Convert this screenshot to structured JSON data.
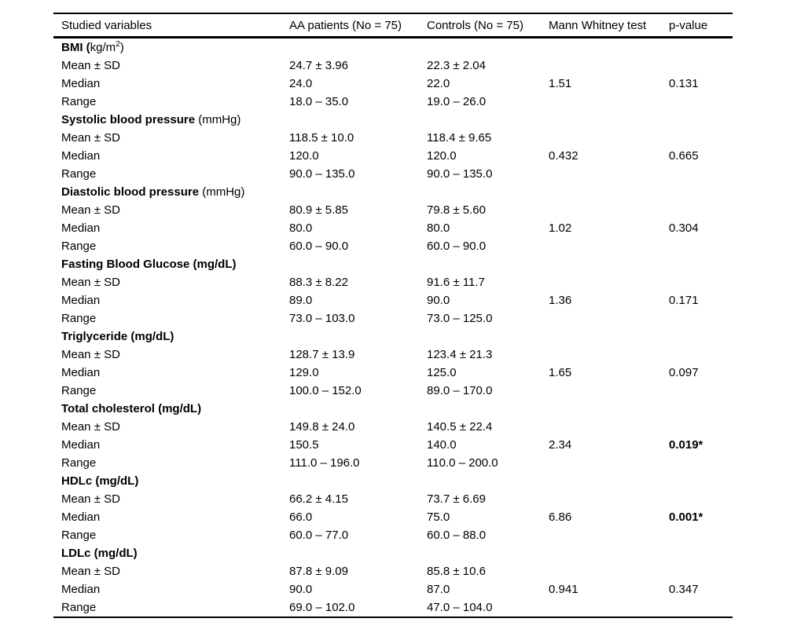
{
  "table": {
    "headers": [
      "Studied variables",
      "AA patients (No = 75)",
      "Controls (No = 75)",
      "Mann Whitney test",
      "p-value"
    ],
    "groups": [
      {
        "label_bold": "BMI (",
        "label_regular": "kg/m",
        "label_sup": "2",
        "label_after": ")",
        "rows": [
          {
            "label": "Mean ± SD",
            "aa": "24.7 ± 3.96",
            "control": "22.3 ± 2.04",
            "mw": "",
            "p": "",
            "p_bold": false
          },
          {
            "label": "Median",
            "aa": "24.0",
            "control": "22.0",
            "mw": "1.51",
            "p": "0.131",
            "p_bold": false
          },
          {
            "label": "Range",
            "aa": "18.0 – 35.0",
            "control": "19.0 – 26.0",
            "mw": "",
            "p": "",
            "p_bold": false
          }
        ]
      },
      {
        "label_bold": "Systolic blood pressure",
        "label_regular": " (mmHg)",
        "label_sup": "",
        "label_after": "",
        "rows": [
          {
            "label": "Mean ± SD",
            "aa": "118.5 ± 10.0",
            "control": "118.4 ± 9.65",
            "mw": "",
            "p": "",
            "p_bold": false
          },
          {
            "label": "Median",
            "aa": "120.0",
            "control": "120.0",
            "mw": "0.432",
            "p": "0.665",
            "p_bold": false
          },
          {
            "label": "Range",
            "aa": "90.0 – 135.0",
            "control": "90.0 – 135.0",
            "mw": "",
            "p": "",
            "p_bold": false
          }
        ]
      },
      {
        "label_bold": "Diastolic blood pressure",
        "label_regular": " (mmHg)",
        "label_sup": "",
        "label_after": "",
        "rows": [
          {
            "label": "Mean ± SD",
            "aa": "80.9 ± 5.85",
            "control": "79.8 ± 5.60",
            "mw": "",
            "p": "",
            "p_bold": false
          },
          {
            "label": "Median",
            "aa": "80.0",
            "control": "80.0",
            "mw": "1.02",
            "p": "0.304",
            "p_bold": false
          },
          {
            "label": "Range",
            "aa": "60.0 – 90.0",
            "control": "60.0 – 90.0",
            "mw": "",
            "p": "",
            "p_bold": false
          }
        ]
      },
      {
        "label_bold": "Fasting Blood Glucose (mg/dL)",
        "label_regular": "",
        "label_sup": "",
        "label_after": "",
        "rows": [
          {
            "label": "Mean ± SD",
            "aa": "88.3 ± 8.22",
            "control": "91.6 ± 11.7",
            "mw": "",
            "p": "",
            "p_bold": false
          },
          {
            "label": "Median",
            "aa": "89.0",
            "control": "90.0",
            "mw": "1.36",
            "p": "0.171",
            "p_bold": false
          },
          {
            "label": "Range",
            "aa": "73.0 – 103.0",
            "control": "73.0 – 125.0",
            "mw": "",
            "p": "",
            "p_bold": false
          }
        ]
      },
      {
        "label_bold": "Triglyceride (mg/dL)",
        "label_regular": "",
        "label_sup": "",
        "label_after": "",
        "rows": [
          {
            "label": "Mean ± SD",
            "aa": "128.7 ± 13.9",
            "control": "123.4 ± 21.3",
            "mw": "",
            "p": "",
            "p_bold": false
          },
          {
            "label": "Median",
            "aa": "129.0",
            "control": "125.0",
            "mw": "1.65",
            "p": "0.097",
            "p_bold": false
          },
          {
            "label": "Range",
            "aa": "100.0 – 152.0",
            "control": "89.0 – 170.0",
            "mw": "",
            "p": "",
            "p_bold": false
          }
        ]
      },
      {
        "label_bold": "Total cholesterol (mg/dL)",
        "label_regular": "",
        "label_sup": "",
        "label_after": "",
        "rows": [
          {
            "label": "Mean ± SD",
            "aa": "149.8 ± 24.0",
            "control": "140.5 ± 22.4",
            "mw": "",
            "p": "",
            "p_bold": false
          },
          {
            "label": "Median",
            "aa": "150.5",
            "control": "140.0",
            "mw": "2.34",
            "p": "0.019*",
            "p_bold": true
          },
          {
            "label": "Range",
            "aa": "111.0 – 196.0",
            "control": "110.0 – 200.0",
            "mw": "",
            "p": "",
            "p_bold": false
          }
        ]
      },
      {
        "label_bold": "HDLc (mg/dL)",
        "label_regular": "",
        "label_sup": "",
        "label_after": "",
        "rows": [
          {
            "label": "Mean ± SD",
            "aa": "66.2 ± 4.15",
            "control": "73.7 ± 6.69",
            "mw": "",
            "p": "",
            "p_bold": false
          },
          {
            "label": "Median",
            "aa": "66.0",
            "control": "75.0",
            "mw": "6.86",
            "p": "0.001*",
            "p_bold": true
          },
          {
            "label": "Range",
            "aa": "60.0 – 77.0",
            "control": "60.0 – 88.0",
            "mw": "",
            "p": "",
            "p_bold": false
          }
        ]
      },
      {
        "label_bold": "LDLc (mg/dL)",
        "label_regular": "",
        "label_sup": "",
        "label_after": "",
        "rows": [
          {
            "label": "Mean ± SD",
            "aa": "87.8 ± 9.09",
            "control": "85.8 ± 10.6",
            "mw": "",
            "p": "",
            "p_bold": false
          },
          {
            "label": "Median",
            "aa": "90.0",
            "control": "87.0",
            "mw": "0.941",
            "p": "0.347",
            "p_bold": false
          },
          {
            "label": "Range",
            "aa": "69.0 – 102.0",
            "control": "47.0 – 104.0",
            "mw": "",
            "p": "",
            "p_bold": false
          }
        ]
      }
    ]
  }
}
